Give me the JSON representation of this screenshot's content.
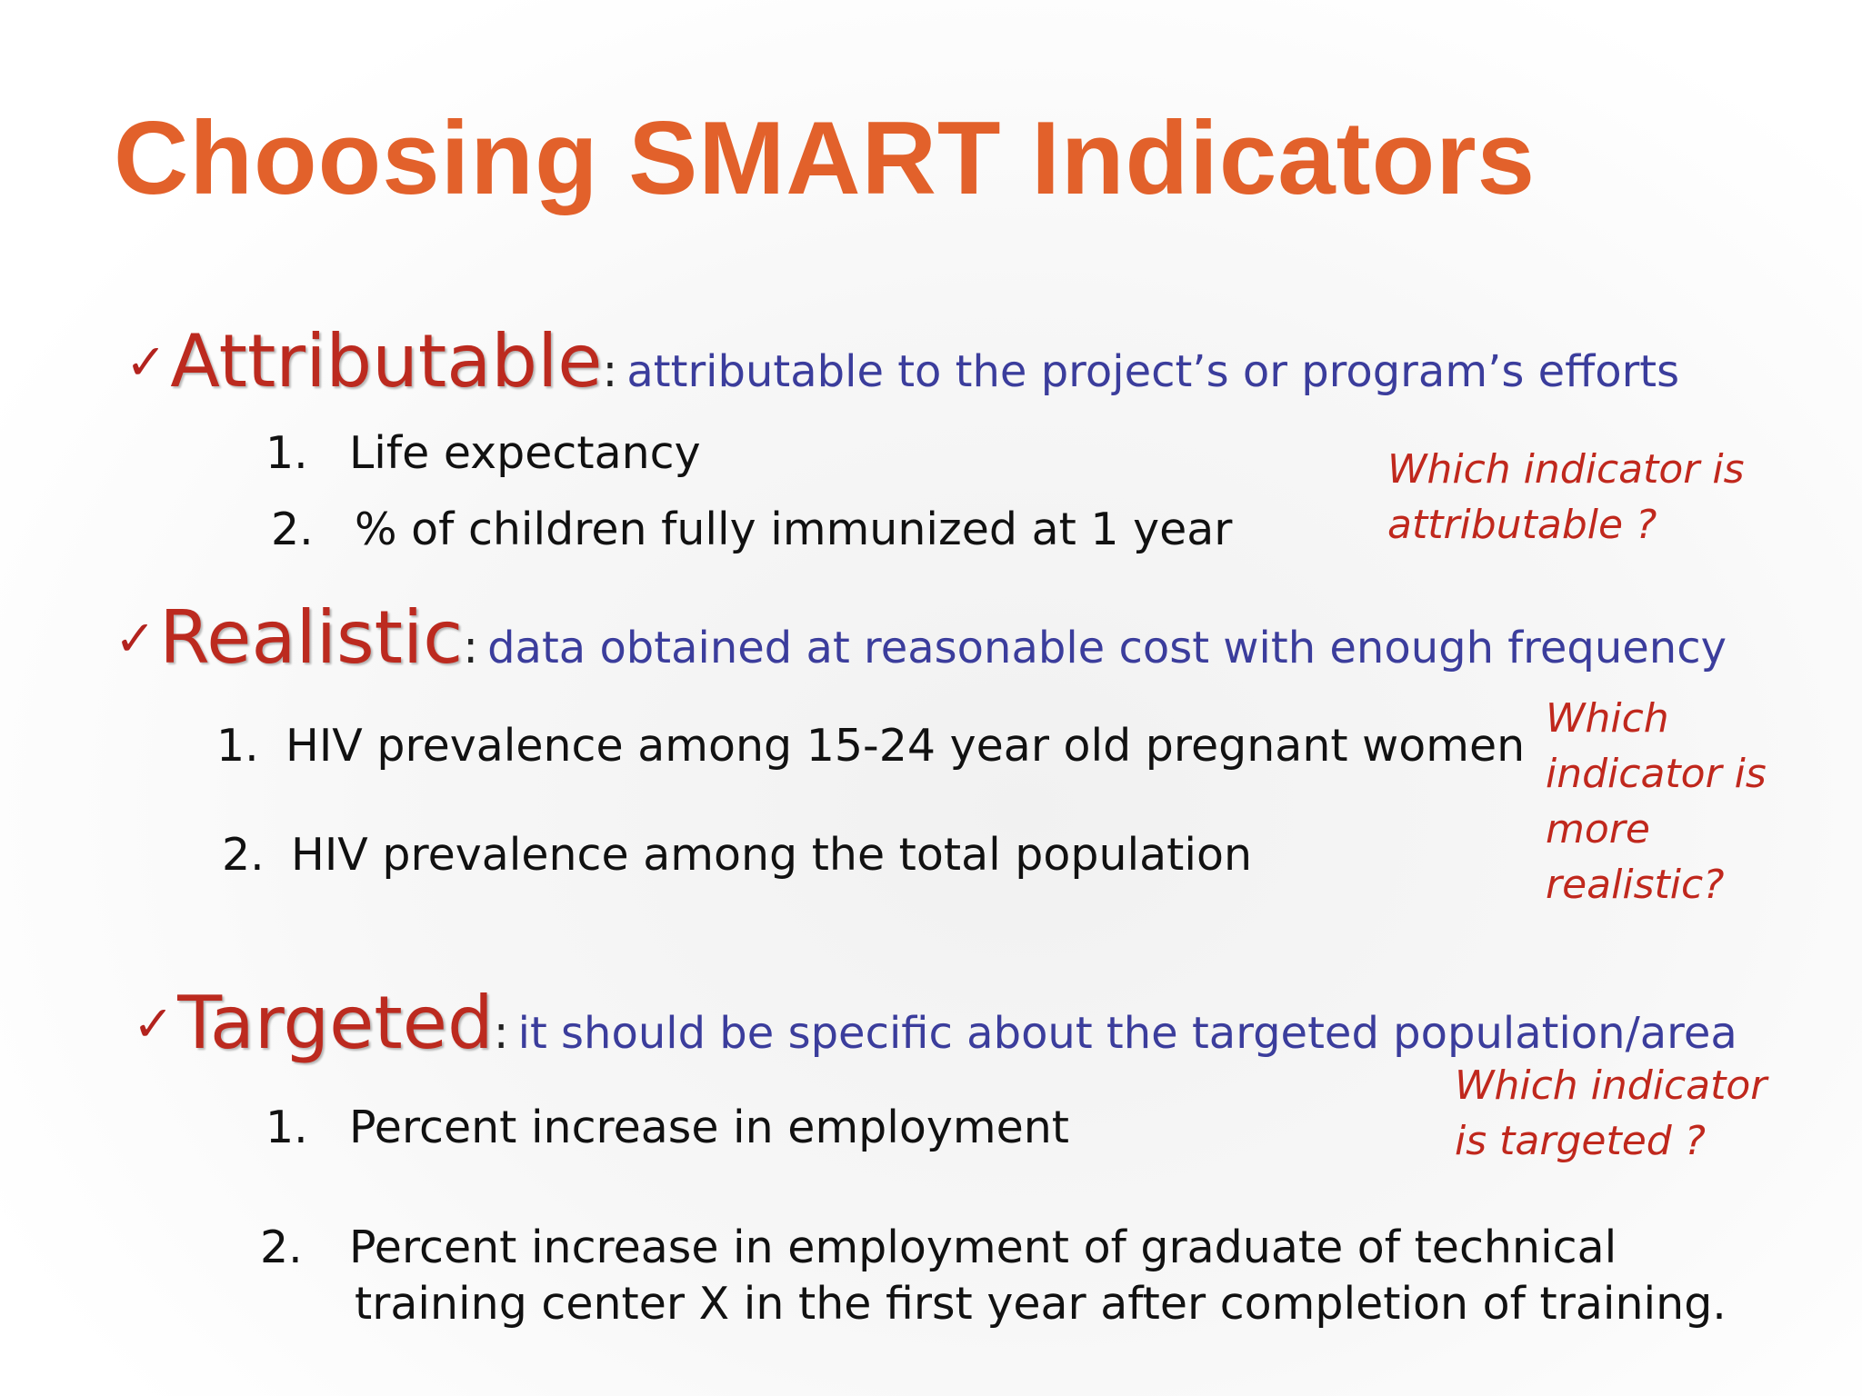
{
  "title": "Choosing SMART Indicators",
  "check_glyph": "✓",
  "colors": {
    "title": "#e2612b",
    "term": "#bc2a1f",
    "description": "#3b3d9c",
    "question": "#c0281d",
    "item_text": "#111111"
  },
  "attributable": {
    "term": "Attributable",
    "colon": ":",
    "description": "attributable to the project’s or program’s efforts",
    "items": [
      {
        "num": "1.",
        "text": "Life expectancy"
      },
      {
        "num": "2.",
        "text": "% of children fully immunized at 1 year"
      }
    ],
    "question": [
      "Which indicator  is",
      "attributable ?"
    ]
  },
  "realistic": {
    "term": "Realistic",
    "colon": ":",
    "description": "data obtained at reasonable cost with enough frequency",
    "items": [
      {
        "num": "1.",
        "text": "HIV prevalence among 15-24 year old pregnant women"
      },
      {
        "num": "2.",
        "text": "HIV prevalence among the total population"
      }
    ],
    "question": [
      "Which",
      "indicator is",
      "more",
      "realistic?"
    ]
  },
  "targeted": {
    "term": "Targeted",
    "colon": ":",
    "description": "it should be specific about the targeted population/area",
    "items": [
      {
        "num": "1.",
        "text": "Percent increase in employment"
      },
      {
        "num": "2.",
        "text": "Percent increase in employment of graduate of technical",
        "text2": "training center X in the first year after completion of training."
      }
    ],
    "question": [
      "Which indicator",
      "is targeted ?"
    ]
  }
}
